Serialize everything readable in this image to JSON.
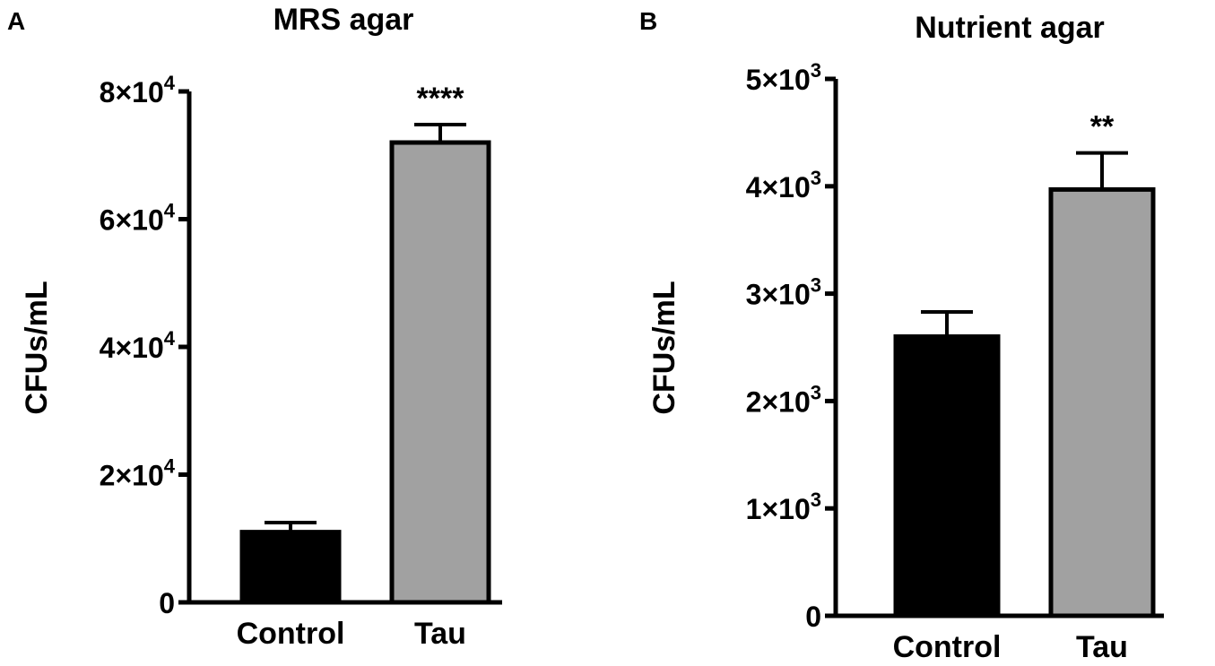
{
  "chart_data": [
    {
      "panel_label": "A",
      "type": "bar",
      "title": "MRS agar",
      "ylabel": "CFUs/mL",
      "xlabel": "",
      "categories": [
        "Control",
        "Tau"
      ],
      "values": [
        11000,
        72000
      ],
      "errors": [
        1500,
        2800
      ],
      "significance": [
        "",
        "****"
      ],
      "colors": [
        "#000000",
        "#a1a1a1"
      ],
      "ylim": [
        0,
        80000
      ],
      "yticks": [
        0,
        20000,
        40000,
        60000,
        80000
      ],
      "ytick_labels": [
        {
          "base": "0",
          "exp": ""
        },
        {
          "base": "2×10",
          "exp": "4"
        },
        {
          "base": "4×10",
          "exp": "4"
        },
        {
          "base": "6×10",
          "exp": "4"
        },
        {
          "base": "8×10",
          "exp": "4"
        }
      ],
      "grid": false,
      "legend": "none"
    },
    {
      "panel_label": "B",
      "type": "bar",
      "title": "Nutrient agar",
      "ylabel": "CFUs/mL",
      "xlabel": "",
      "categories": [
        "Control",
        "Tau"
      ],
      "values": [
        2600,
        3970
      ],
      "errors": [
        230,
        340
      ],
      "significance": [
        "",
        "**"
      ],
      "colors": [
        "#000000",
        "#a1a1a1"
      ],
      "ylim": [
        0,
        5000
      ],
      "yticks": [
        0,
        1000,
        2000,
        3000,
        4000,
        5000
      ],
      "ytick_labels": [
        {
          "base": "0",
          "exp": ""
        },
        {
          "base": "1×10",
          "exp": "3"
        },
        {
          "base": "2×10",
          "exp": "3"
        },
        {
          "base": "3×10",
          "exp": "3"
        },
        {
          "base": "4×10",
          "exp": "3"
        },
        {
          "base": "5×10",
          "exp": "3"
        }
      ],
      "grid": false,
      "legend": "none"
    }
  ]
}
